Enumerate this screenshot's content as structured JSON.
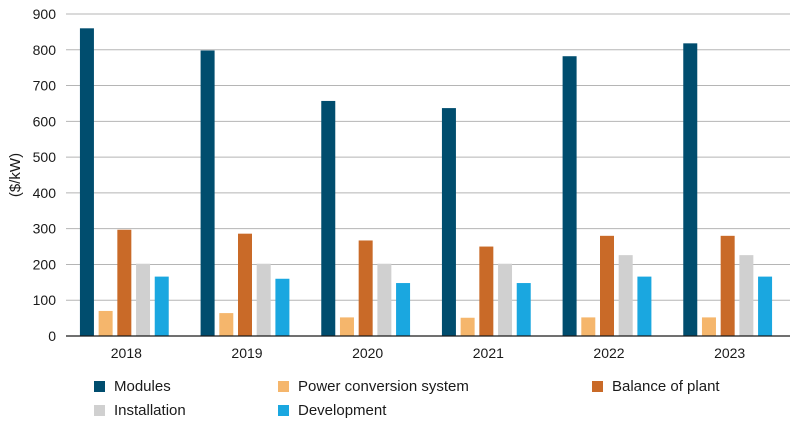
{
  "chart_data": {
    "type": "bar",
    "ylabel": "($/kW)",
    "ylim": [
      0,
      900
    ],
    "yticks": [
      0,
      100,
      200,
      300,
      400,
      500,
      600,
      700,
      800,
      900
    ],
    "grid": "horizontal",
    "legend_position": "bottom",
    "categories": [
      "2018",
      "2019",
      "2020",
      "2021",
      "2022",
      "2023"
    ],
    "series": [
      {
        "name": "Modules",
        "color": "#004d6e",
        "values": [
          860,
          798,
          657,
          637,
          782,
          818
        ]
      },
      {
        "name": "Power conversion system",
        "color": "#f5b66c",
        "values": [
          70,
          64,
          52,
          51,
          52,
          52
        ]
      },
      {
        "name": "Balance of plant",
        "color": "#c96a28",
        "values": [
          297,
          286,
          267,
          250,
          280,
          280
        ]
      },
      {
        "name": "Installation",
        "color": "#d0d0d0",
        "values": [
          202,
          202,
          202,
          202,
          226,
          226
        ]
      },
      {
        "name": "Development",
        "color": "#1aa7e0",
        "values": [
          166,
          160,
          148,
          148,
          166,
          166
        ]
      }
    ]
  }
}
